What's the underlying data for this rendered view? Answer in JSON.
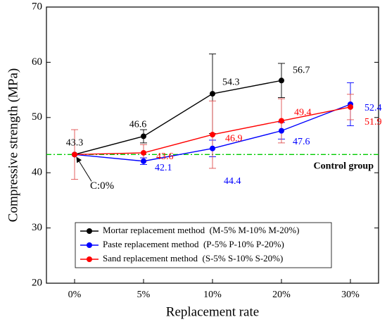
{
  "chart_data": {
    "type": "line",
    "x_label": "Replacement rate",
    "y_label": "Compressive strength (MPa)",
    "categories": [
      "0%",
      "5%",
      "10%",
      "20%",
      "30%"
    ],
    "ylim": [
      20,
      70
    ],
    "yticks": [
      20,
      30,
      40,
      50,
      60,
      70
    ],
    "series": [
      {
        "name": "Mortar replacement method  (M-5% M-10% M-20%)",
        "color": "#000000",
        "values": [
          43.3,
          46.6,
          54.3,
          56.7,
          null
        ],
        "errors": [
          null,
          1.2,
          7.2,
          3.1,
          null
        ],
        "value_labels": [
          "43.3",
          "46.6",
          "54.3",
          "56.7",
          null
        ]
      },
      {
        "name": "Paste replacement method  (P-5% P-10% P-20%)",
        "color": "#0000ff",
        "values": [
          43.3,
          42.1,
          44.4,
          47.6,
          52.4
        ],
        "errors": [
          null,
          0.6,
          1.5,
          1.5,
          3.9
        ],
        "value_labels": [
          null,
          "42.1",
          "44.4",
          "47.6",
          "52.4"
        ]
      },
      {
        "name": "Sand replacement method  (S-5% S-10% S-20%)",
        "color": "#ff0000",
        "values": [
          43.3,
          43.6,
          46.9,
          49.4,
          51.9
        ],
        "errors": [
          4.5,
          1.5,
          6.1,
          4.0,
          2.3
        ],
        "value_labels": [
          null,
          "43.6",
          "46.9",
          "49.4",
          "51.9"
        ]
      }
    ],
    "reference_line": {
      "value": 43.3,
      "label": "Control group",
      "color": "#00cc00"
    },
    "annotation": "C:0%"
  }
}
